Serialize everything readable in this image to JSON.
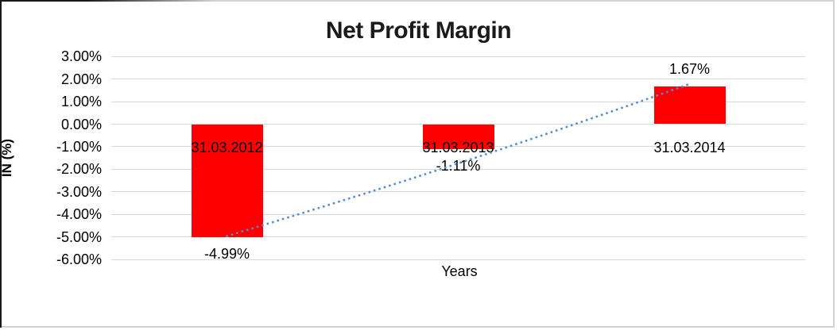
{
  "chart_data": {
    "type": "bar",
    "title": "Net Profit Margin",
    "xlabel": "Years",
    "ylabel": "IN (%)",
    "categories": [
      "31.03.2012",
      "31.03.2013",
      "31.03.2014"
    ],
    "values": [
      -4.99,
      -1.11,
      1.67
    ],
    "value_labels": [
      "-4.99%",
      "-1.11%",
      "1.67%"
    ],
    "y_tick_values": [
      3,
      2,
      1,
      0,
      -1,
      -2,
      -3,
      -4,
      -5,
      -6
    ],
    "y_tick_labels": [
      "3.00%",
      "2.00%",
      "1.00%",
      "0.00%",
      "-1.00%",
      "-2.00%",
      "-3.00%",
      "-4.00%",
      "-5.00%",
      "-6.00%"
    ],
    "ylim": [
      -6,
      3
    ],
    "grid": true,
    "legend": "none",
    "bar_color": "#ff0000",
    "label_color": "#000000",
    "grid_color": "#d9d9d9",
    "trendline": {
      "style": "dotted",
      "color": "#538cd0",
      "start_pct": -4.95,
      "end_pct": 1.78,
      "bow_pct": -0.3
    }
  }
}
